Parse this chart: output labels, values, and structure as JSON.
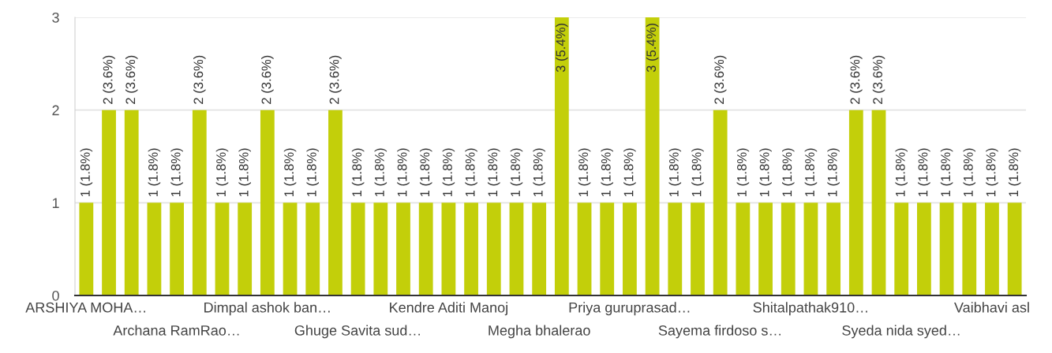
{
  "chart_data": {
    "type": "bar",
    "categories": [
      "ARSHIYA MOHA…",
      null,
      null,
      null,
      "Archana RamRao…",
      null,
      null,
      null,
      "Dimpal ashok ban…",
      null,
      null,
      null,
      "Ghuge Savita sud…",
      null,
      null,
      null,
      "Kendre Aditi Manoj",
      null,
      null,
      null,
      "Megha bhalerao",
      null,
      null,
      null,
      "Priya guruprasad…",
      null,
      null,
      null,
      "Sayema firdoso s…",
      null,
      null,
      null,
      "Shitalpathak910…",
      null,
      null,
      null,
      "Syeda nida syed…",
      null,
      null,
      null,
      "Vaibhavi asl",
      null
    ],
    "values": [
      1,
      2,
      2,
      1,
      1,
      2,
      1,
      1,
      2,
      1,
      1,
      2,
      1,
      1,
      1,
      1,
      1,
      1,
      1,
      1,
      1,
      3,
      1,
      1,
      1,
      3,
      1,
      1,
      2,
      1,
      1,
      1,
      1,
      1,
      2,
      2,
      1,
      1,
      1,
      1,
      1,
      1
    ],
    "value_labels": [
      "1 (1.8%)",
      "2 (3.6%)",
      "2 (3.6%)",
      "1 (1.8%)",
      "1 (1.8%)",
      "2 (3.6%)",
      "1 (1.8%)",
      "1 (1.8%)",
      "2 (3.6%)",
      "1 (1.8%)",
      "1 (1.8%)",
      "2 (3.6%)",
      "1 (1.8%)",
      "1 (1.8%)",
      "1 (1.8%)",
      "1 (1.8%)",
      "1 (1.8%)",
      "1 (1.8%)",
      "1 (1.8%)",
      "1 (1.8%)",
      "1 (1.8%)",
      "3 (5.4%)",
      "1 (1.8%)",
      "1 (1.8%)",
      "1 (1.8%)",
      "3 (5.4%)",
      "1 (1.8%)",
      "1 (1.8%)",
      "2 (3.6%)",
      "1 (1.8%)",
      "1 (1.8%)",
      "1 (1.8%)",
      "1 (1.8%)",
      "1 (1.8%)",
      "2 (3.6%)",
      "2 (3.6%)",
      "1 (1.8%)",
      "1 (1.8%)",
      "1 (1.8%)",
      "1 (1.8%)",
      "1 (1.8%)",
      "1 (1.8%)"
    ],
    "color": "#c3cf0a",
    "ylim": [
      0,
      3
    ],
    "yticks": [
      0,
      1,
      2,
      3
    ],
    "grid": "y"
  }
}
